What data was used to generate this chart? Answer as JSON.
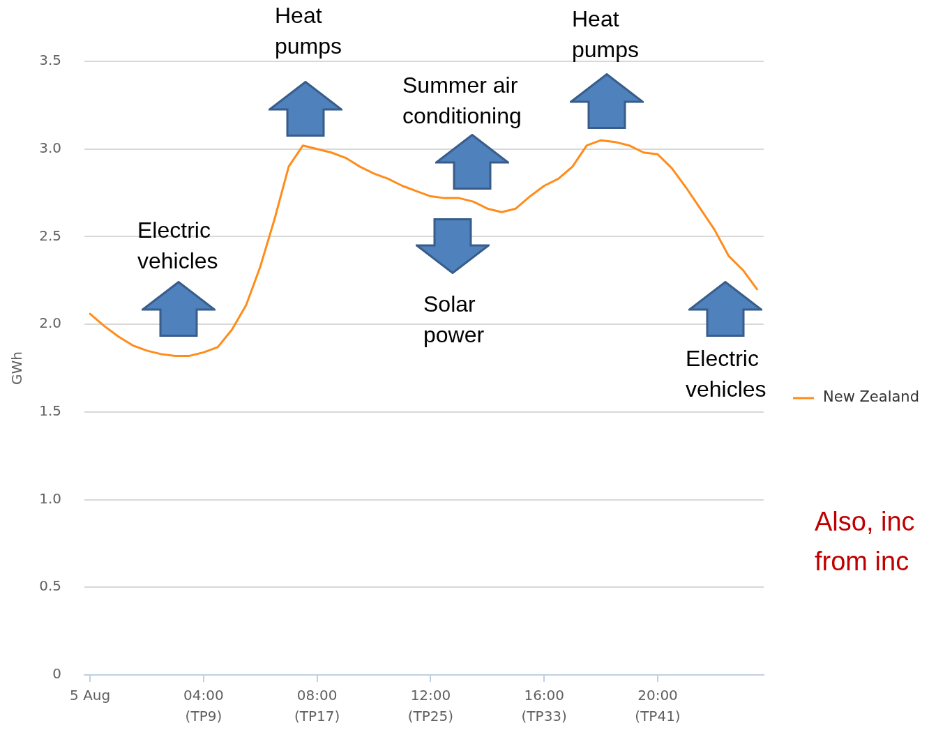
{
  "chart_data": {
    "type": "line",
    "ylabel": "GWh",
    "categories": [
      "5 Aug",
      null,
      null,
      null,
      null,
      null,
      null,
      null,
      "04:00\n(TP9)",
      null,
      null,
      null,
      null,
      null,
      null,
      null,
      "08:00\n(TP17)",
      null,
      null,
      null,
      null,
      null,
      null,
      null,
      "12:00\n(TP25)",
      null,
      null,
      null,
      null,
      null,
      null,
      null,
      "16:00\n(TP33)",
      null,
      null,
      null,
      null,
      null,
      null,
      null,
      "20:00\n(TP41)",
      null,
      null,
      null,
      null,
      null,
      null,
      null
    ],
    "series": [
      {
        "name": "New Zealand",
        "color": "#ff8c1a",
        "values": [
          2.06,
          1.99,
          1.93,
          1.88,
          1.85,
          1.83,
          1.82,
          1.82,
          1.84,
          1.87,
          1.97,
          2.11,
          2.33,
          2.6,
          2.9,
          3.02,
          3.0,
          2.98,
          2.95,
          2.9,
          2.86,
          2.83,
          2.79,
          2.76,
          2.73,
          2.72,
          2.72,
          2.7,
          2.66,
          2.64,
          2.66,
          2.73,
          2.79,
          2.83,
          2.9,
          3.02,
          3.05,
          3.04,
          3.02,
          2.98,
          2.97,
          2.89,
          2.78,
          2.66,
          2.54,
          2.39,
          2.31,
          2.2
        ]
      }
    ],
    "ylim": [
      0,
      3.5
    ],
    "yticks": [
      0,
      0.5,
      {
        "value": 1,
        "label": "1.0"
      },
      1.5,
      {
        "value": 2,
        "label": "2.0"
      },
      2.5,
      {
        "value": 3,
        "label": "3.0"
      },
      3.5
    ],
    "grid": "y",
    "legend": "right",
    "marker": "none",
    "annotations": [
      "Electric\nvehicles",
      "Heat\npumps",
      "Summer air\nconditioning",
      "Solar\npower",
      "Heat\npumps",
      "Electric\nvehicles",
      "Also, inc\nfrom inc"
    ]
  }
}
